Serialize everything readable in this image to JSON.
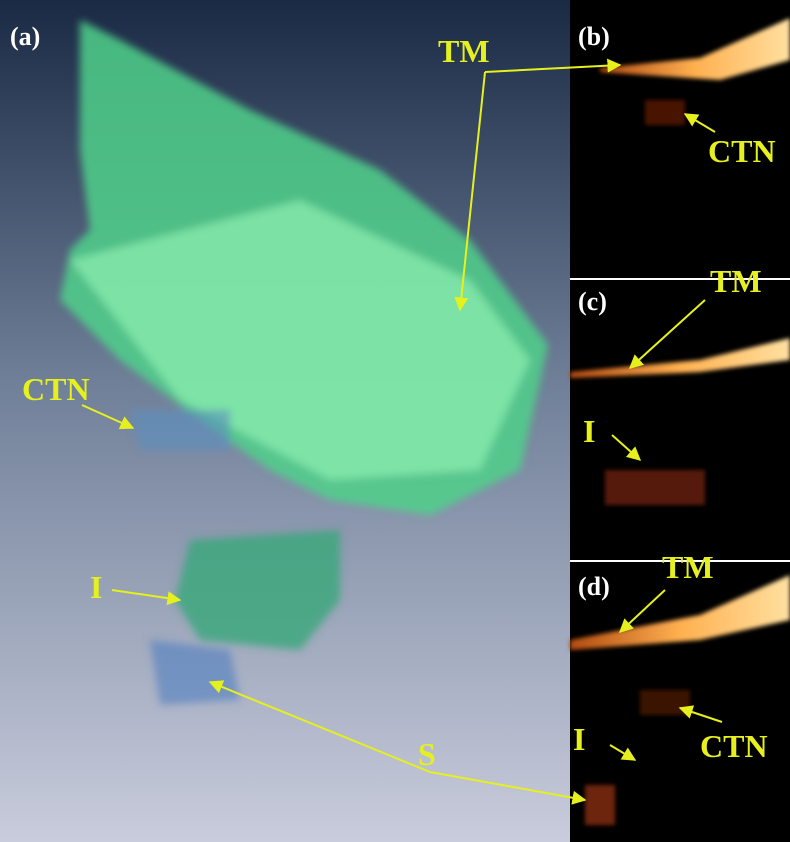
{
  "panels": [
    "(a)",
    "(b)",
    "(c)",
    "(d)"
  ],
  "annotations": {
    "a": [
      "CTN",
      "I",
      "S"
    ],
    "b": [
      "TM",
      "CTN"
    ],
    "c": [
      "TM",
      "I"
    ],
    "d": [
      "TM",
      "CTN",
      "I"
    ]
  }
}
